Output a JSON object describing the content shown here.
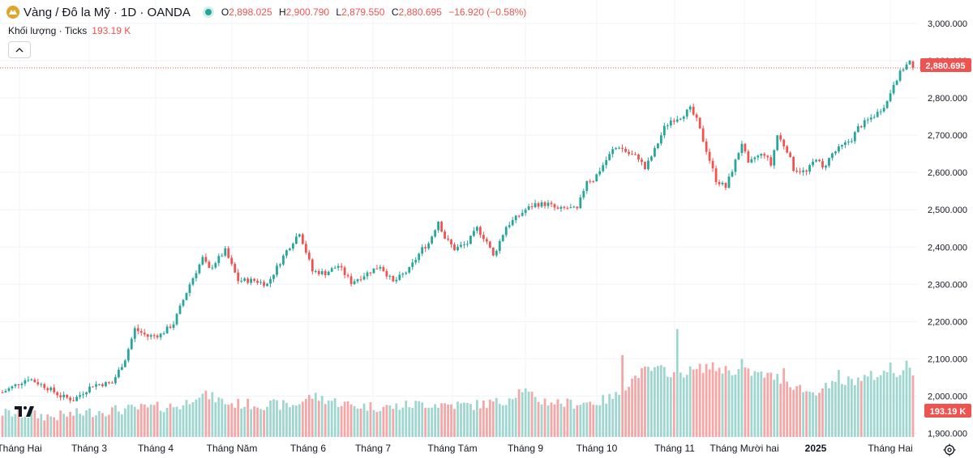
{
  "header": {
    "symbol": "Vàng / Đô la Mỹ · 1D · OANDA",
    "open_label": "O",
    "open": "2,898.025",
    "high_label": "H",
    "high": "2,900.790",
    "low_label": "L",
    "low": "2,879.550",
    "close_label": "C",
    "close": "2,880.695",
    "change": "−16.920 (−0.58%)"
  },
  "volume": {
    "label": "Khối lượng · Ticks",
    "value": "193.19 K"
  },
  "colors": {
    "up": "#26a69a",
    "down": "#ef5350",
    "vol_up": "#9fd6d0",
    "vol_down": "#f4a7a6",
    "grid": "#f0f3fa",
    "text": "#131722"
  },
  "icons": {
    "collapse": "chevron-up-icon",
    "settings": "gear-icon",
    "logo": "tradingview-logo",
    "symbol": "gold-coin-icon"
  },
  "chart_data": {
    "type": "candlestick",
    "price_axis": {
      "min": 1900,
      "max": 3000,
      "ticks": [
        3000,
        2900,
        2800,
        2700,
        2600,
        2500,
        2400,
        2300,
        2200,
        2100,
        2000,
        1900
      ],
      "tick_labels": [
        "3,000.000",
        "2,900.000",
        "2,800.000",
        "2,700.000",
        "2,600.000",
        "2,500.000",
        "2,400.000",
        "2,300.000",
        "2,200.000",
        "2,100.000",
        "2,000.000",
        "1,900.000"
      ]
    },
    "last_price": {
      "value": 2880.695,
      "label": "2,880.695"
    },
    "volume_last": {
      "label": "193.19 K"
    },
    "x_axis_labels": [
      "Tháng Hai",
      "Tháng 3",
      "Tháng 4",
      "Tháng Năm",
      "Tháng 6",
      "Tháng 7",
      "Tháng Tám",
      "Tháng 9",
      "Tháng 10",
      "Tháng 11",
      "Tháng Mười hai",
      "2025",
      "Tháng Hai"
    ],
    "x_axis_label_positions": [
      24,
      110,
      192,
      286,
      380,
      460,
      558,
      648,
      736,
      832,
      918,
      1006,
      1098
    ],
    "anchors": [
      [
        0,
        2010
      ],
      [
        8,
        2048
      ],
      [
        14,
        2022
      ],
      [
        18,
        2000
      ],
      [
        22,
        1990
      ],
      [
        28,
        2030
      ],
      [
        34,
        2035
      ],
      [
        38,
        2100
      ],
      [
        41,
        2180
      ],
      [
        45,
        2160
      ],
      [
        49,
        2165
      ],
      [
        53,
        2195
      ],
      [
        58,
        2300
      ],
      [
        62,
        2370
      ],
      [
        64,
        2340
      ],
      [
        69,
        2390
      ],
      [
        73,
        2310
      ],
      [
        78,
        2310
      ],
      [
        82,
        2300
      ],
      [
        88,
        2390
      ],
      [
        92,
        2440
      ],
      [
        96,
        2335
      ],
      [
        100,
        2330
      ],
      [
        104,
        2350
      ],
      [
        108,
        2305
      ],
      [
        112,
        2325
      ],
      [
        117,
        2350
      ],
      [
        121,
        2305
      ],
      [
        126,
        2340
      ],
      [
        130,
        2395
      ],
      [
        132,
        2410
      ],
      [
        135,
        2470
      ],
      [
        137,
        2425
      ],
      [
        140,
        2395
      ],
      [
        144,
        2410
      ],
      [
        147,
        2450
      ],
      [
        150,
        2415
      ],
      [
        152,
        2375
      ],
      [
        156,
        2455
      ],
      [
        158,
        2470
      ],
      [
        162,
        2500
      ],
      [
        165,
        2515
      ],
      [
        169,
        2515
      ],
      [
        172,
        2500
      ],
      [
        175,
        2505
      ],
      [
        178,
        2500
      ],
      [
        181,
        2580
      ],
      [
        183,
        2580
      ],
      [
        186,
        2620
      ],
      [
        189,
        2660
      ],
      [
        191,
        2670
      ],
      [
        194,
        2650
      ],
      [
        197,
        2640
      ],
      [
        199,
        2610
      ],
      [
        202,
        2660
      ],
      [
        205,
        2720
      ],
      [
        207,
        2740
      ],
      [
        210,
        2750
      ],
      [
        213,
        2770
      ],
      [
        215,
        2740
      ],
      [
        218,
        2660
      ],
      [
        221,
        2580
      ],
      [
        224,
        2560
      ],
      [
        227,
        2630
      ],
      [
        229,
        2680
      ],
      [
        231,
        2620
      ],
      [
        233,
        2640
      ],
      [
        236,
        2650
      ],
      [
        238,
        2620
      ],
      [
        240,
        2700
      ],
      [
        243,
        2660
      ],
      [
        245,
        2610
      ],
      [
        249,
        2600
      ],
      [
        252,
        2640
      ],
      [
        254,
        2610
      ],
      [
        257,
        2650
      ],
      [
        260,
        2670
      ],
      [
        263,
        2690
      ],
      [
        265,
        2720
      ],
      [
        268,
        2740
      ],
      [
        271,
        2760
      ],
      [
        274,
        2790
      ],
      [
        276,
        2840
      ],
      [
        279,
        2880
      ],
      [
        281,
        2897
      ],
      [
        282,
        2881
      ]
    ],
    "volume_anchors": [
      [
        0,
        1955
      ],
      [
        8,
        1950
      ],
      [
        16,
        1945
      ],
      [
        30,
        1960
      ],
      [
        40,
        1965
      ],
      [
        56,
        1975
      ],
      [
        60,
        2005
      ],
      [
        64,
        2000
      ],
      [
        70,
        1980
      ],
      [
        90,
        1975
      ],
      [
        96,
        2000
      ],
      [
        108,
        1975
      ],
      [
        120,
        1970
      ],
      [
        130,
        1980
      ],
      [
        145,
        1975
      ],
      [
        155,
        1985
      ],
      [
        161,
        2020
      ],
      [
        165,
        1990
      ],
      [
        175,
        1980
      ],
      [
        185,
        1985
      ],
      [
        190,
        2000
      ],
      [
        197,
        2060
      ],
      [
        200,
        2070
      ],
      [
        205,
        2070
      ],
      [
        208,
        2060
      ],
      [
        215,
        2070
      ],
      [
        218,
        2080
      ],
      [
        225,
        2070
      ],
      [
        230,
        2065
      ],
      [
        240,
        2050
      ],
      [
        245,
        2030
      ],
      [
        250,
        2010
      ],
      [
        256,
        2025
      ],
      [
        262,
        2040
      ],
      [
        270,
        2055
      ],
      [
        276,
        2065
      ],
      [
        282,
        2065
      ]
    ],
    "volume_spikes": {
      "192": 2110,
      "209": 2180,
      "229": 2100,
      "242": 2075,
      "251": 2010,
      "259": 2070,
      "275": 2090,
      "280": 2095
    },
    "bar_count": 283
  }
}
